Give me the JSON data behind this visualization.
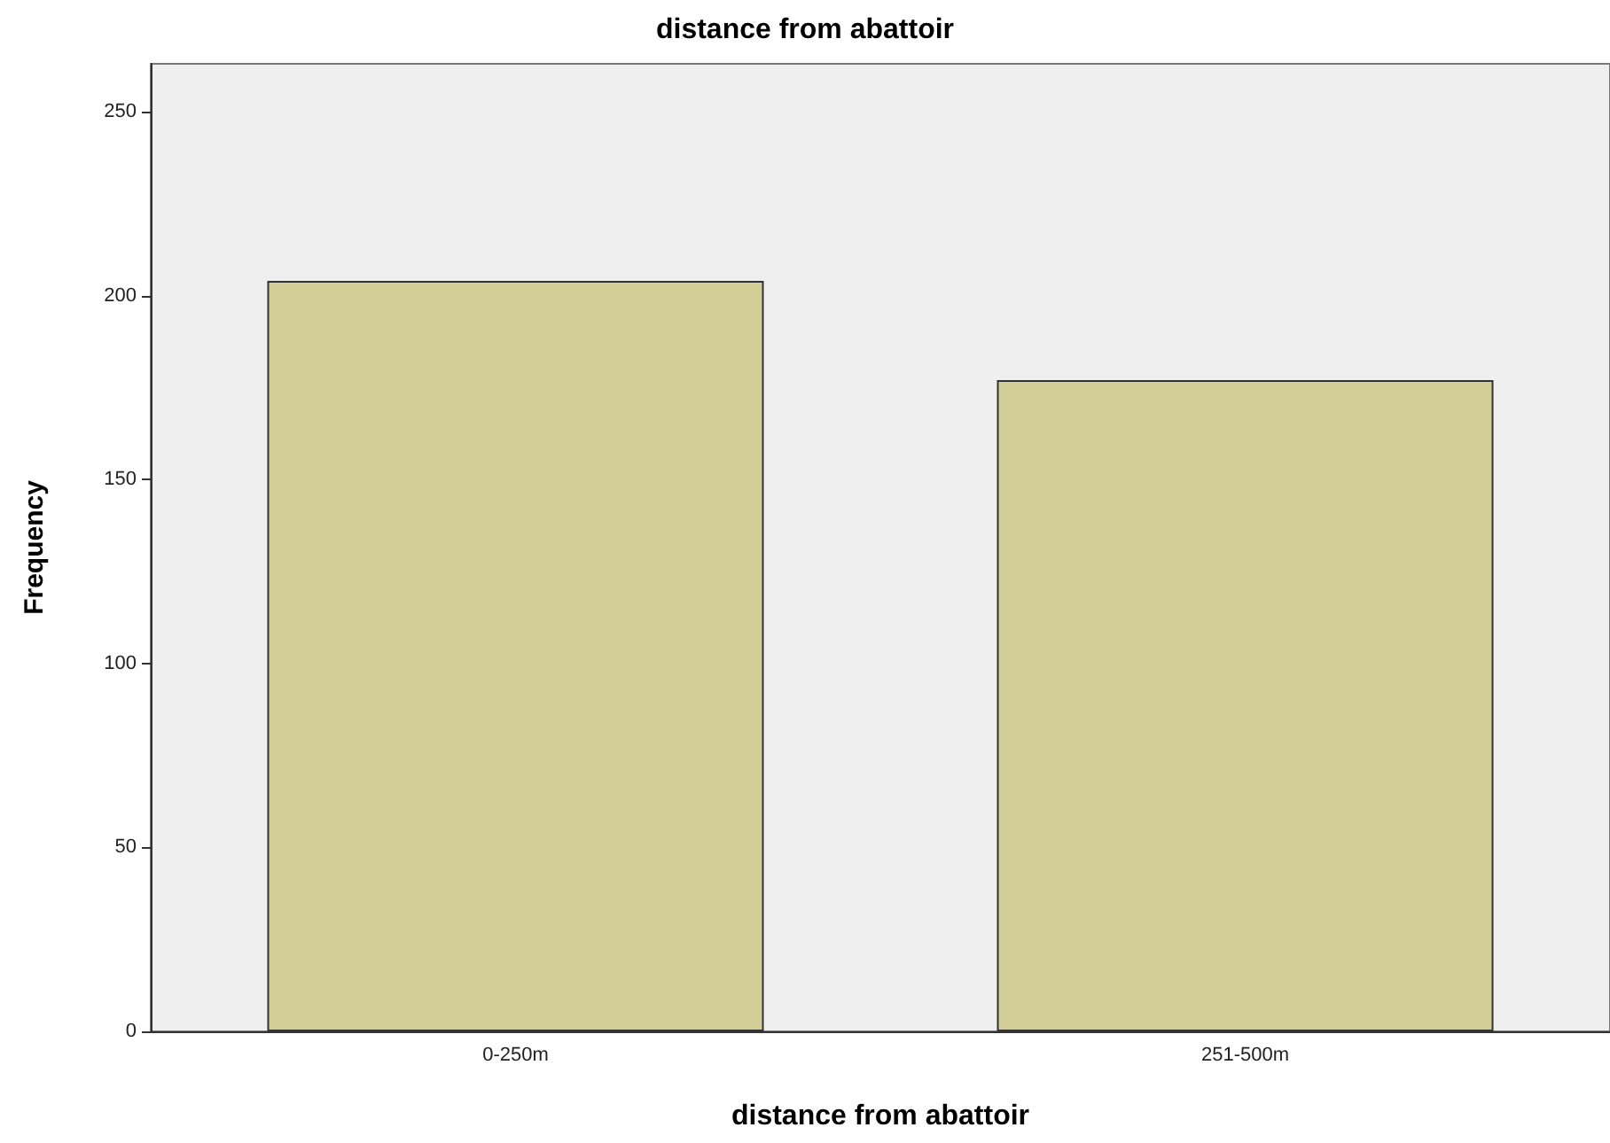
{
  "chart_data": {
    "type": "bar",
    "title": "distance from abattoir",
    "xlabel": "distance from abattoir",
    "ylabel": "Frequency",
    "categories": [
      "0-250m",
      "251-500m"
    ],
    "values": [
      204,
      177
    ],
    "color": "#d3cd97",
    "ylim": [
      0,
      263
    ],
    "yticks": [
      0,
      50,
      100,
      150,
      200,
      250
    ],
    "grid": false
  }
}
